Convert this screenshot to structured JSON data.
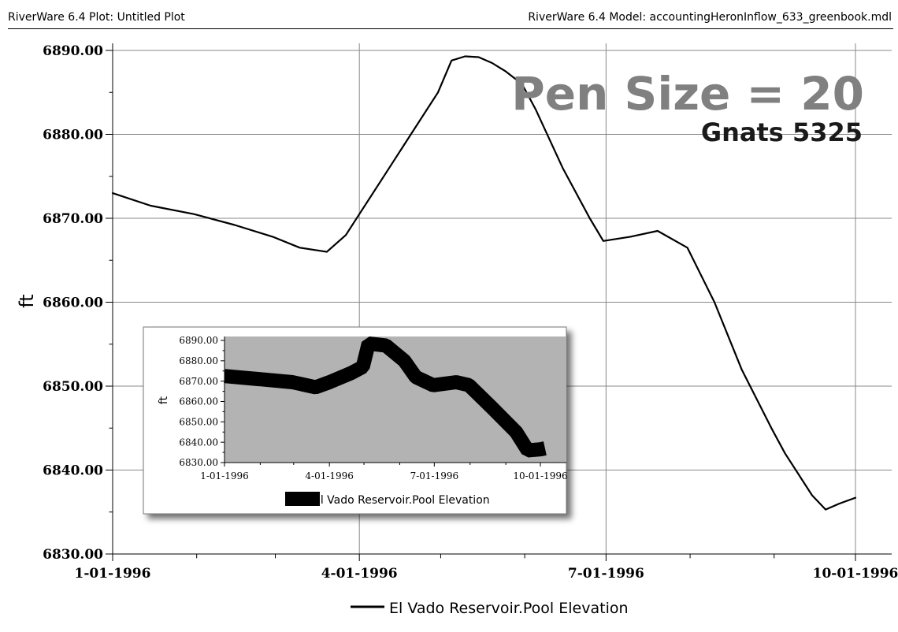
{
  "header": {
    "left_title": "RiverWare 6.4 Plot: Untitled Plot",
    "right_title": "RiverWare 6.4 Model: accountingHeronInflow_633_greenbook.mdl"
  },
  "annotations": {
    "pen_size": "Pen Size = 20",
    "gnats": "Gnats 5325"
  },
  "chart_data": [
    {
      "type": "line",
      "title": "",
      "xlabel": "",
      "ylabel": "ft",
      "ylim": [
        6830,
        6890
      ],
      "y_ticks": [
        "6890.00",
        "6880.00",
        "6870.00",
        "6860.00",
        "6850.00",
        "6840.00",
        "6830.00"
      ],
      "x_ticks": [
        "1-01-1996",
        "4-01-1996",
        "7-01-1996",
        "10-01-1996"
      ],
      "grid": true,
      "legend": "bottom",
      "series": [
        {
          "name": "El Vado Reservoir.Pool Elevation",
          "color": "#000000",
          "x": [
            "1-01-1996",
            "1-15-1996",
            "1-31-1996",
            "2-15-1996",
            "2-29-1996",
            "3-10-1996",
            "3-20-1996",
            "3-27-1996",
            "4-01-1996",
            "4-10-1996",
            "4-20-1996",
            "4-30-1996",
            "5-05-1996",
            "5-10-1996",
            "5-15-1996",
            "5-20-1996",
            "5-25-1996",
            "5-31-1996",
            "6-05-1996",
            "6-15-1996",
            "6-25-1996",
            "6-30-1996",
            "7-10-1996",
            "7-20-1996",
            "7-31-1996",
            "8-10-1996",
            "8-20-1996",
            "8-31-1996",
            "9-05-1996",
            "9-15-1996",
            "9-20-1996",
            "9-25-1996",
            "10-01-1996"
          ],
          "values": [
            6873.0,
            6871.5,
            6870.5,
            6869.2,
            6867.8,
            6866.5,
            6866.0,
            6868.0,
            6870.5,
            6875.0,
            6880.0,
            6885.0,
            6888.8,
            6889.3,
            6889.2,
            6888.5,
            6887.5,
            6886.0,
            6883.0,
            6876.0,
            6870.0,
            6867.3,
            6867.8,
            6868.5,
            6866.5,
            6860.0,
            6852.0,
            6845.0,
            6842.0,
            6837.0,
            6835.3,
            6836.0,
            6836.7
          ]
        }
      ]
    },
    {
      "type": "line",
      "title": "",
      "xlabel": "",
      "ylabel": "ft",
      "ylim": [
        6830,
        6890
      ],
      "y_ticks": [
        "6890.00",
        "6880.00",
        "6870.00",
        "6860.00",
        "6850.00",
        "6840.00",
        "6830.00"
      ],
      "x_ticks": [
        "1-01-1996",
        "4-01-1996",
        "7-01-1996",
        "10-01-1996"
      ],
      "plot_background": "#b3b3b3",
      "legend": "bottom",
      "series": [
        {
          "name": "El Vado Reservoir.Pool Elevation",
          "color": "#000000",
          "x": [
            "1-01-1996",
            "1-31-1996",
            "2-29-1996",
            "3-20-1996",
            "4-01-1996",
            "4-20-1996",
            "4-30-1996",
            "5-05-1996",
            "5-20-1996",
            "6-05-1996",
            "6-15-1996",
            "6-30-1996",
            "7-20-1996",
            "7-31-1996",
            "8-20-1996",
            "9-10-1996",
            "9-20-1996",
            "10-01-1996",
            "10-05-1996"
          ],
          "values": [
            6872.5,
            6871.0,
            6869.5,
            6867.0,
            6869.5,
            6874.0,
            6877.0,
            6888.5,
            6887.5,
            6880.0,
            6872.0,
            6868.0,
            6869.5,
            6868.0,
            6857.0,
            6845.0,
            6836.0,
            6836.5,
            6837.0
          ]
        }
      ]
    }
  ]
}
